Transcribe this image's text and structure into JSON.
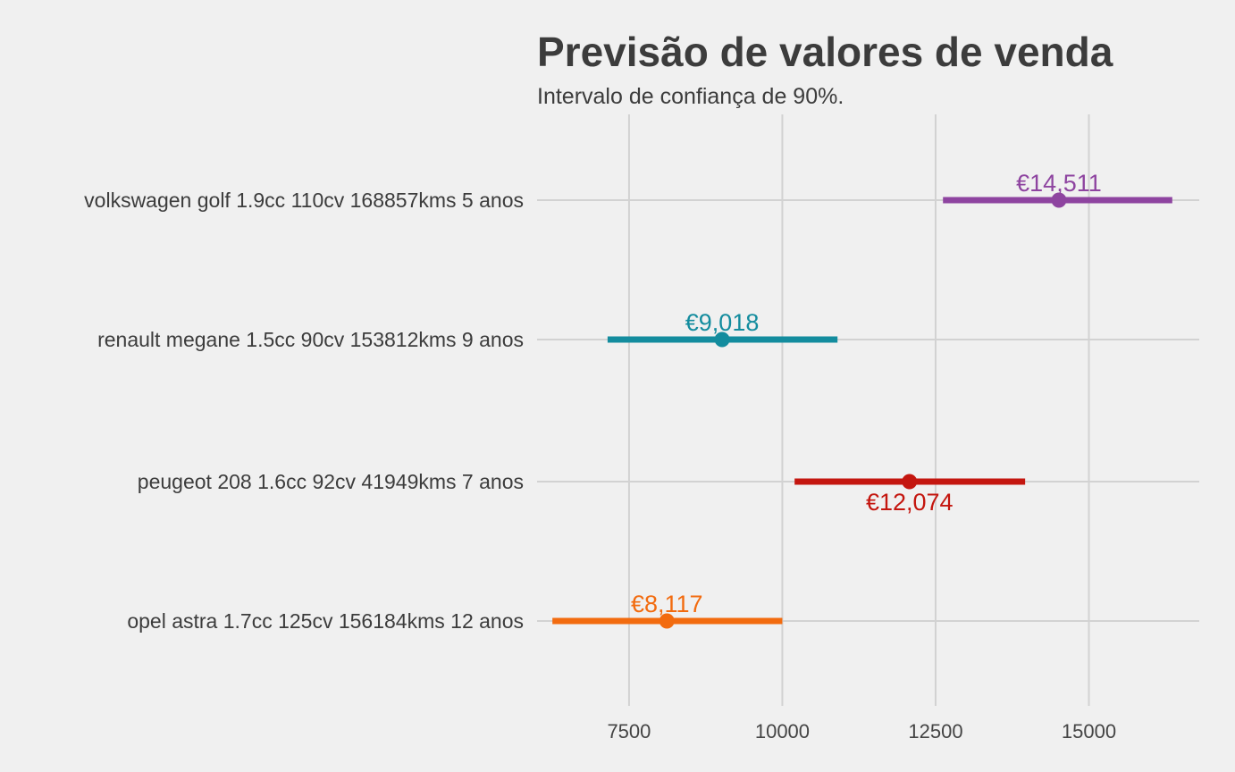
{
  "chart_data": {
    "type": "errorbar",
    "title": "Previsão de valores de venda",
    "subtitle": "Intervalo de confiança de 90%.",
    "xlabel": "",
    "ylabel": "",
    "xlim": [
      6000,
      16800
    ],
    "x_ticks": [
      7500,
      10000,
      12500,
      15000
    ],
    "grid": true,
    "categories": [
      "volkswagen golf 1.9cc 110cv 168857kms 5 anos",
      "renault megane 1.5cc 90cv 153812kms 9 anos",
      "peugeot 208 1.6cc 92cv 41949kms 7 anos",
      "opel astra 1.7cc 125cv 156184kms 12 anos"
    ],
    "series": [
      {
        "category": "volkswagen golf 1.9cc 110cv 168857kms 5 anos",
        "value": 14511,
        "low": 12620,
        "high": 16360,
        "label": "€14,511",
        "color": "#8e44a0",
        "label_position": "above"
      },
      {
        "category": "renault megane 1.5cc 90cv 153812kms 9 anos",
        "value": 9018,
        "low": 7150,
        "high": 10900,
        "label": "€9,018",
        "color": "#138c9e",
        "label_position": "above"
      },
      {
        "category": "peugeot 208 1.6cc 92cv 41949kms 7 anos",
        "value": 12074,
        "low": 10200,
        "high": 13960,
        "label": "€12,074",
        "color": "#c4160f",
        "label_position": "below"
      },
      {
        "category": "opel astra 1.7cc 125cv 156184kms 12 anos",
        "value": 8117,
        "low": 6250,
        "high": 10000,
        "label": "€8,117",
        "color": "#f26b0f",
        "label_position": "above"
      }
    ]
  }
}
